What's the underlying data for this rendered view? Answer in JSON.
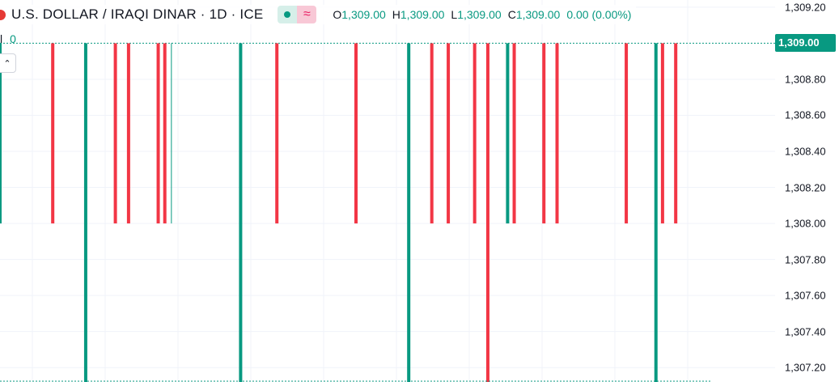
{
  "legend": {
    "symbol": "U.S. DOLLAR / IRAQI DINAR · 1D · ICE",
    "open_label": "O",
    "open": "1,309.00",
    "high_label": "H",
    "high": "1,309.00",
    "low_label": "L",
    "low": "1,309.00",
    "close_label": "C",
    "close": "1,309.00",
    "change": "0.00 (0.00%)",
    "volume_label": "l",
    "volume_value": "0",
    "pill_right_glyph": "≈"
  },
  "price_axis": {
    "ticks": [
      "1,309.20",
      "1,308.80",
      "1,308.60",
      "1,308.40",
      "1,308.20",
      "1,308.00",
      "1,307.80",
      "1,307.60",
      "1,307.40",
      "1,307.20"
    ],
    "tick_values": [
      1309.2,
      1308.8,
      1308.6,
      1308.4,
      1308.2,
      1308.0,
      1307.8,
      1307.6,
      1307.4,
      1307.2
    ],
    "current_price_label": "1,309.00",
    "current_price": 1309.0
  },
  "colors": {
    "up": "#089981",
    "down": "#f23645",
    "grid": "#f0f3fa",
    "text": "#131722"
  },
  "chart_data": {
    "type": "bar",
    "kind": "candlestick",
    "ylim": [
      1307.12,
      1309.24
    ],
    "grid": true,
    "last_price": 1309.0,
    "x_range": [
      0,
      108
    ],
    "candles": [
      {
        "x": 0,
        "low": 1308.0,
        "high": 1309.0,
        "dir": "up"
      },
      {
        "x": 8,
        "low": 1308.0,
        "high": 1309.0,
        "dir": "down"
      },
      {
        "x": 13,
        "low": 1307.1,
        "high": 1309.0,
        "dir": "up"
      },
      {
        "x": 17.5,
        "low": 1308.0,
        "high": 1309.0,
        "dir": "down"
      },
      {
        "x": 19.5,
        "low": 1308.0,
        "high": 1309.0,
        "dir": "down"
      },
      {
        "x": 24,
        "low": 1308.0,
        "high": 1309.0,
        "dir": "down"
      },
      {
        "x": 25,
        "low": 1308.0,
        "high": 1309.0,
        "dir": "down"
      },
      {
        "x": 26,
        "low": 1308.0,
        "high": 1309.0,
        "dir": "up_thin"
      },
      {
        "x": 36.5,
        "low": 1307.1,
        "high": 1309.0,
        "dir": "up"
      },
      {
        "x": 42,
        "low": 1308.0,
        "high": 1309.0,
        "dir": "down"
      },
      {
        "x": 54,
        "low": 1308.0,
        "high": 1309.0,
        "dir": "down"
      },
      {
        "x": 62,
        "low": 1307.1,
        "high": 1309.0,
        "dir": "up"
      },
      {
        "x": 65.5,
        "low": 1308.0,
        "high": 1309.0,
        "dir": "down"
      },
      {
        "x": 68,
        "low": 1308.0,
        "high": 1309.0,
        "dir": "down"
      },
      {
        "x": 72,
        "low": 1308.0,
        "high": 1309.0,
        "dir": "down"
      },
      {
        "x": 74,
        "low": 1307.1,
        "high": 1309.0,
        "dir": "down"
      },
      {
        "x": 77,
        "low": 1308.0,
        "high": 1309.0,
        "dir": "up"
      },
      {
        "x": 78,
        "low": 1308.0,
        "high": 1309.0,
        "dir": "down"
      },
      {
        "x": 82.5,
        "low": 1308.0,
        "high": 1309.0,
        "dir": "down"
      },
      {
        "x": 84.5,
        "low": 1308.0,
        "high": 1309.0,
        "dir": "down"
      },
      {
        "x": 95,
        "low": 1308.0,
        "high": 1309.0,
        "dir": "down"
      },
      {
        "x": 99.5,
        "low": 1307.1,
        "high": 1309.0,
        "dir": "up"
      },
      {
        "x": 100.5,
        "low": 1308.0,
        "high": 1309.0,
        "dir": "down"
      },
      {
        "x": 102.5,
        "low": 1308.0,
        "high": 1309.0,
        "dir": "down"
      }
    ]
  }
}
